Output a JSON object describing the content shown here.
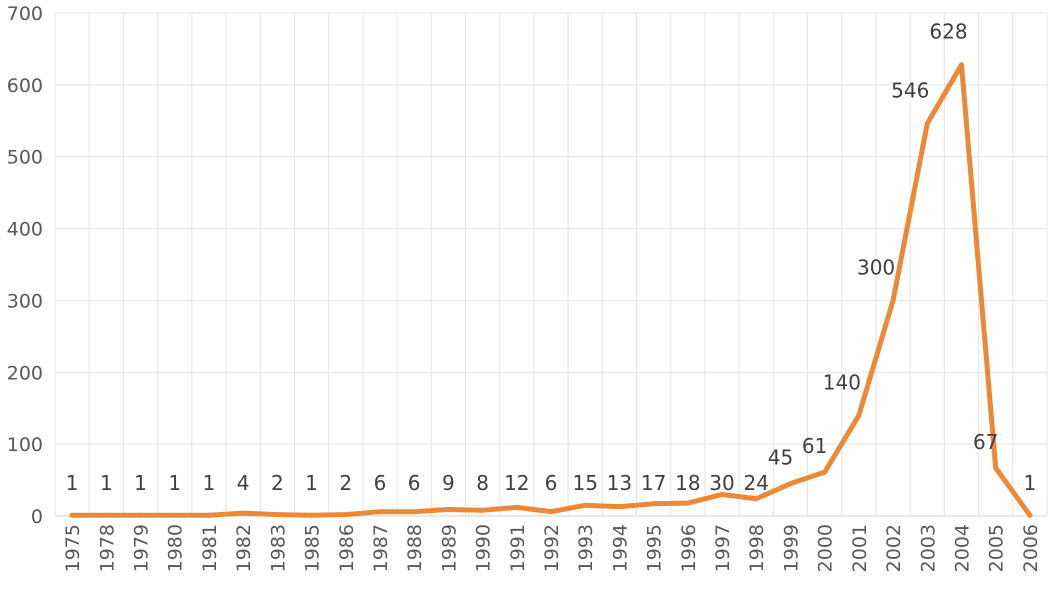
{
  "chart_data": {
    "type": "line",
    "title": "",
    "xlabel": "",
    "ylabel": "",
    "categories": [
      "1975",
      "1978",
      "1979",
      "1980",
      "1981",
      "1982",
      "1983",
      "1985",
      "1986",
      "1987",
      "1988",
      "1989",
      "1990",
      "1991",
      "1992",
      "1993",
      "1994",
      "1995",
      "1996",
      "1997",
      "1998",
      "1999",
      "2000",
      "2001",
      "2002",
      "2003",
      "2004",
      "2005",
      "2006"
    ],
    "series": [
      {
        "values": [
          1,
          1,
          1,
          1,
          1,
          4,
          2,
          1,
          2,
          6,
          6,
          9,
          8,
          12,
          6,
          15,
          13,
          17,
          18,
          30,
          24,
          45,
          61,
          140,
          300,
          546,
          628,
          67,
          1
        ],
        "color": "#ED8936"
      }
    ],
    "ylim": [
      0,
      700
    ],
    "yticks": [
      0,
      100,
      200,
      300,
      400,
      500,
      600,
      700
    ],
    "grid": true,
    "legend": "none"
  }
}
